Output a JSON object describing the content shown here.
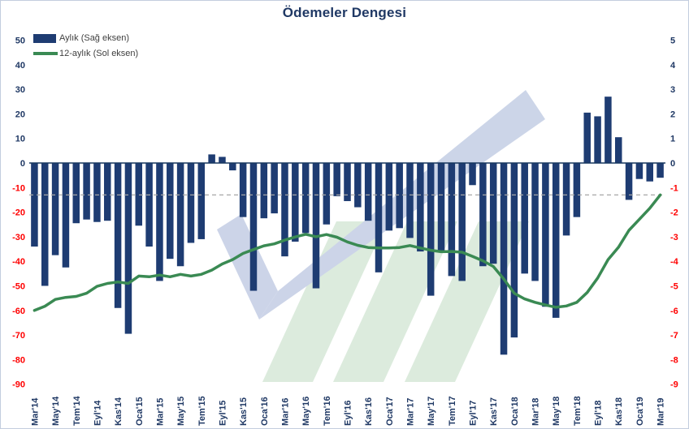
{
  "title": "Ödemeler Dengesi",
  "legend": [
    {
      "label": "Aylık (Sağ eksen)",
      "type": "bar"
    },
    {
      "label": "12-aylık (Sol eksen)",
      "type": "line"
    }
  ],
  "colors": {
    "bar": "#1e3c72",
    "line": "#3a8a53",
    "title": "#1f3864",
    "axis_positive": "#1f3864",
    "axis_negative": "#ff0000",
    "x_label": "#1f3864",
    "legend_text": "#404040",
    "reference_line": "#a6a6a6",
    "zero_line": "#17375e",
    "watermark_blue": "#c7d0e6",
    "watermark_green": "#d9e9da"
  },
  "chart_data": {
    "type": "bar",
    "subtype": "bar+line combo, dual axis",
    "title": "Ödemeler Dengesi",
    "n_points": 61,
    "x_tick_every": 2,
    "x_tick_labels": [
      "Mar'14",
      "May'14",
      "Tem'14",
      "Eyl'14",
      "Kas'14",
      "Oca'15",
      "Mar'15",
      "May'15",
      "Tem'15",
      "Eyl'15",
      "Kas'15",
      "Oca'16",
      "Mar'16",
      "May'16",
      "Tem'16",
      "Eyl'16",
      "Kas'16",
      "Oca'17",
      "Mar'17",
      "May'17",
      "Tem'17",
      "Eyl'17",
      "Kas'17",
      "Oca'18",
      "Mar'18",
      "May'18",
      "Tem'18",
      "Eyl'18",
      "Kas'18",
      "Oca'19",
      "Mar'19"
    ],
    "left_axis": {
      "min": -90,
      "max": 50,
      "step": 10,
      "applies_to": "12-aylık (Sol eksen)"
    },
    "right_axis": {
      "min": -9,
      "max": 5,
      "step": 1,
      "applies_to": "Aylık (Sağ eksen)"
    },
    "reference_line_left_axis": -13,
    "grid": "off",
    "legend_position": "top-left",
    "series": [
      {
        "name": "Aylık (Sağ eksen)",
        "type": "bar",
        "axis": "right",
        "values": [
          -3.4,
          -5.0,
          -3.75,
          -4.25,
          -2.45,
          -2.3,
          -2.4,
          -2.35,
          -5.9,
          -6.95,
          -2.55,
          -3.4,
          -4.8,
          -3.9,
          -4.2,
          -3.25,
          -3.1,
          0.35,
          0.25,
          -0.3,
          -2.2,
          -5.2,
          -2.25,
          -2.05,
          -3.8,
          -3.2,
          -2.85,
          -5.1,
          -2.5,
          -1.35,
          -1.55,
          -1.8,
          -2.35,
          -4.45,
          -2.75,
          -2.65,
          -3.05,
          -3.6,
          -5.4,
          -3.6,
          -4.6,
          -4.8,
          -0.9,
          -4.2,
          -4.1,
          -7.8,
          -7.1,
          -4.5,
          -4.8,
          -5.85,
          -6.3,
          -2.95,
          -2.2,
          2.05,
          1.9,
          2.7,
          1.05,
          -1.5,
          -0.65,
          -0.75,
          -0.6
        ]
      },
      {
        "name": "12-aylık (Sol eksen)",
        "type": "line",
        "axis": "left",
        "values": [
          -60,
          -58.3,
          -55.5,
          -54.7,
          -54.3,
          -53,
          -50.2,
          -49,
          -48.4,
          -49,
          -46,
          -46.3,
          -45.6,
          -46.3,
          -45.3,
          -46,
          -45.3,
          -43.6,
          -41.1,
          -39.3,
          -36.8,
          -35.2,
          -33.7,
          -32.9,
          -31.4,
          -30.1,
          -29,
          -30,
          -29.1,
          -30.2,
          -32.1,
          -33.5,
          -34.4,
          -34.6,
          -34.6,
          -34.4,
          -33.6,
          -34.6,
          -35.5,
          -36.1,
          -36,
          -36.3,
          -38,
          -39.8,
          -42.1,
          -47.2,
          -53,
          -55.3,
          -56.7,
          -57.8,
          -58.7,
          -58.2,
          -56.7,
          -52.7,
          -46.8,
          -39.3,
          -34.3,
          -27.4,
          -22.9,
          -18.4,
          -13
        ]
      }
    ]
  }
}
